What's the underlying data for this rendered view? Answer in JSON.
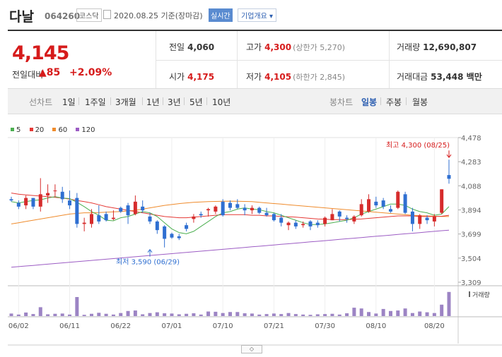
{
  "header": {
    "name": "다날",
    "code": "064260",
    "market": "코스닥",
    "date": "2020.08.25 기준(장마감)",
    "realtime": "실시간",
    "company_overview": "기업개요 ▾"
  },
  "summary": {
    "price": "4,145",
    "change_label": "전일대비",
    "change": "▲85",
    "change_pct": "+2.09%",
    "prev_close_label": "전일",
    "prev_close": "4,060",
    "high_label": "고가",
    "high": "4,300",
    "upper_limit": "(상한가 5,270)",
    "volume_label": "거래량",
    "volume": "12,690,807",
    "open_label": "시가",
    "open": "4,175",
    "low_label": "저가",
    "low": "4,105",
    "lower_limit": "(하한가 2,845)",
    "amount_label": "거래대금",
    "amount": "53,448 백만"
  },
  "tabs": {
    "line_label": "선차트",
    "line_periods": [
      "1일",
      "1주일",
      "3개월",
      "1년",
      "3년",
      "5년",
      "10년"
    ],
    "candle_label": "봉차트",
    "candle_periods": [
      "일봉",
      "주봉",
      "월봉"
    ],
    "active_candle": "일봉"
  },
  "legend": [
    {
      "name": "5",
      "color": "#4caf50"
    },
    {
      "name": "20",
      "color": "#e53935"
    },
    {
      "name": "60",
      "color": "#ef8b2c"
    },
    {
      "name": "120",
      "color": "#9c5cc4"
    }
  ],
  "chart_data": {
    "type": "candlestick",
    "ylim": [
      3309,
      4478
    ],
    "yticks": [
      "4,478",
      "4,283",
      "4,088",
      "3,894",
      "3,699",
      "3,504",
      "3,309"
    ],
    "xticks": [
      {
        "label": "06/02",
        "i": 1
      },
      {
        "label": "06/11",
        "i": 8
      },
      {
        "label": "06/22",
        "i": 15
      },
      {
        "label": "07/01",
        "i": 22
      },
      {
        "label": "07/10",
        "i": 29
      },
      {
        "label": "07/21",
        "i": 36
      },
      {
        "label": "07/30",
        "i": 43
      },
      {
        "label": "08/10",
        "i": 50
      },
      {
        "label": "08/20",
        "i": 58
      }
    ],
    "annotations": {
      "max": {
        "text": "최고 4,300 (08/25)",
        "i": 60,
        "value": 4300
      },
      "min": {
        "text": "최저 3,590 (06/29)",
        "i": 19,
        "value": 3590
      }
    },
    "volume_label": "거래량",
    "candles": [
      {
        "o": 3980,
        "h": 4000,
        "l": 3960,
        "c": 3970
      },
      {
        "o": 3950,
        "h": 3970,
        "l": 3900,
        "c": 3920
      },
      {
        "o": 3930,
        "h": 4010,
        "l": 3900,
        "c": 3990
      },
      {
        "o": 3990,
        "h": 3990,
        "l": 3900,
        "c": 3920
      },
      {
        "o": 3920,
        "h": 4150,
        "l": 3880,
        "c": 4020
      },
      {
        "o": 4010,
        "h": 4100,
        "l": 3950,
        "c": 4030
      },
      {
        "o": 4050,
        "h": 4100,
        "l": 4000,
        "c": 4050
      },
      {
        "o": 4040,
        "h": 4080,
        "l": 3950,
        "c": 3980
      },
      {
        "o": 3970,
        "h": 4050,
        "l": 3900,
        "c": 3930
      },
      {
        "o": 3990,
        "h": 4030,
        "l": 3750,
        "c": 3780
      },
      {
        "o": 3780,
        "h": 3830,
        "l": 3720,
        "c": 3790
      },
      {
        "o": 3780,
        "h": 3900,
        "l": 3750,
        "c": 3860
      },
      {
        "o": 3850,
        "h": 3930,
        "l": 3780,
        "c": 3800
      },
      {
        "o": 3860,
        "h": 3880,
        "l": 3800,
        "c": 3810
      },
      {
        "o": 3820,
        "h": 3890,
        "l": 3810,
        "c": 3830
      },
      {
        "o": 3910,
        "h": 3920,
        "l": 3870,
        "c": 3880
      },
      {
        "o": 3930,
        "h": 3950,
        "l": 3780,
        "c": 3850
      },
      {
        "o": 3860,
        "h": 4010,
        "l": 3850,
        "c": 3960
      },
      {
        "o": 3920,
        "h": 3970,
        "l": 3870,
        "c": 3890
      },
      {
        "o": 3840,
        "h": 3870,
        "l": 3780,
        "c": 3800
      },
      {
        "o": 3800,
        "h": 3810,
        "l": 3700,
        "c": 3730
      },
      {
        "o": 3760,
        "h": 3770,
        "l": 3590,
        "c": 3660
      },
      {
        "o": 3700,
        "h": 3710,
        "l": 3660,
        "c": 3670
      },
      {
        "o": 3680,
        "h": 3700,
        "l": 3650,
        "c": 3665
      },
      {
        "o": 3770,
        "h": 3790,
        "l": 3720,
        "c": 3740
      },
      {
        "o": 3820,
        "h": 3860,
        "l": 3790,
        "c": 3840
      },
      {
        "o": 3860,
        "h": 3880,
        "l": 3830,
        "c": 3850
      },
      {
        "o": 3890,
        "h": 3910,
        "l": 3840,
        "c": 3900
      },
      {
        "o": 3880,
        "h": 3930,
        "l": 3860,
        "c": 3920
      },
      {
        "o": 3960,
        "h": 3980,
        "l": 3840,
        "c": 3850
      },
      {
        "o": 3950,
        "h": 3970,
        "l": 3890,
        "c": 3910
      },
      {
        "o": 3940,
        "h": 3980,
        "l": 3900,
        "c": 3910
      },
      {
        "o": 3910,
        "h": 3940,
        "l": 3850,
        "c": 3890
      },
      {
        "o": 3890,
        "h": 3930,
        "l": 3860,
        "c": 3910
      },
      {
        "o": 3910,
        "h": 3920,
        "l": 3860,
        "c": 3870
      },
      {
        "o": 3870,
        "h": 3910,
        "l": 3840,
        "c": 3850
      },
      {
        "o": 3860,
        "h": 3870,
        "l": 3800,
        "c": 3810
      },
      {
        "o": 3830,
        "h": 3860,
        "l": 3760,
        "c": 3790
      },
      {
        "o": 3770,
        "h": 3800,
        "l": 3730,
        "c": 3790
      },
      {
        "o": 3790,
        "h": 3810,
        "l": 3740,
        "c": 3760
      },
      {
        "o": 3770,
        "h": 3800,
        "l": 3750,
        "c": 3780
      },
      {
        "o": 3800,
        "h": 3810,
        "l": 3730,
        "c": 3760
      },
      {
        "o": 3790,
        "h": 3810,
        "l": 3750,
        "c": 3770
      },
      {
        "o": 3780,
        "h": 3840,
        "l": 3760,
        "c": 3830
      },
      {
        "o": 3810,
        "h": 3900,
        "l": 3810,
        "c": 3860
      },
      {
        "o": 3880,
        "h": 3890,
        "l": 3800,
        "c": 3840
      },
      {
        "o": 3830,
        "h": 3850,
        "l": 3790,
        "c": 3820
      },
      {
        "o": 3800,
        "h": 3850,
        "l": 3780,
        "c": 3840
      },
      {
        "o": 3850,
        "h": 3980,
        "l": 3840,
        "c": 3940
      },
      {
        "o": 3880,
        "h": 4020,
        "l": 3870,
        "c": 3980
      },
      {
        "o": 3960,
        "h": 4000,
        "l": 3910,
        "c": 3930
      },
      {
        "o": 3970,
        "h": 3990,
        "l": 3900,
        "c": 3920
      },
      {
        "o": 3900,
        "h": 3930,
        "l": 3870,
        "c": 3880
      },
      {
        "o": 3910,
        "h": 4050,
        "l": 3900,
        "c": 4040
      },
      {
        "o": 4020,
        "h": 4040,
        "l": 3860,
        "c": 3870
      },
      {
        "o": 3880,
        "h": 3910,
        "l": 3720,
        "c": 3780
      },
      {
        "o": 3780,
        "h": 3860,
        "l": 3740,
        "c": 3850
      },
      {
        "o": 3830,
        "h": 3850,
        "l": 3780,
        "c": 3810
      },
      {
        "o": 3800,
        "h": 3860,
        "l": 3760,
        "c": 3840
      },
      {
        "o": 3870,
        "h": 4060,
        "l": 3860,
        "c": 4060
      },
      {
        "o": 4175,
        "h": 4300,
        "l": 4105,
        "c": 4145
      }
    ],
    "ma5": [
      3960,
      3950,
      3960,
      3970,
      3975,
      3990,
      4000,
      3990,
      3985,
      3955,
      3920,
      3880,
      3850,
      3810,
      3805,
      3830,
      3840,
      3860,
      3880,
      3870,
      3840,
      3790,
      3740,
      3710,
      3700,
      3720,
      3760,
      3800,
      3840,
      3870,
      3880,
      3900,
      3910,
      3900,
      3895,
      3880,
      3870,
      3850,
      3830,
      3810,
      3790,
      3775,
      3775,
      3780,
      3790,
      3800,
      3810,
      3830,
      3860,
      3880,
      3900,
      3920,
      3940,
      3940,
      3930,
      3900,
      3880,
      3870,
      3850,
      3860,
      3920
    ],
    "ma20": [
      4030,
      4020,
      4015,
      4010,
      4005,
      4000,
      3995,
      3990,
      3980,
      3970,
      3960,
      3950,
      3935,
      3920,
      3910,
      3900,
      3890,
      3880,
      3870,
      3860,
      3850,
      3840,
      3835,
      3830,
      3830,
      3835,
      3840,
      3845,
      3850,
      3855,
      3855,
      3855,
      3855,
      3850,
      3850,
      3845,
      3845,
      3840,
      3838,
      3835,
      3830,
      3825,
      3820,
      3818,
      3815,
      3815,
      3815,
      3818,
      3820,
      3825,
      3830,
      3835,
      3840,
      3845,
      3845,
      3845,
      3840,
      3840,
      3840,
      3842,
      3850
    ],
    "ma60": [
      3780,
      3790,
      3800,
      3810,
      3820,
      3830,
      3840,
      3850,
      3860,
      3865,
      3870,
      3870,
      3872,
      3875,
      3878,
      3880,
      3885,
      3890,
      3900,
      3910,
      3920,
      3930,
      3937,
      3944,
      3950,
      3955,
      3958,
      3960,
      3962,
      3963,
      3964,
      3963,
      3962,
      3960,
      3955,
      3950,
      3945,
      3940,
      3935,
      3930,
      3925,
      3920,
      3915,
      3910,
      3905,
      3900,
      3895,
      3890,
      3885,
      3880,
      3875,
      3870,
      3865,
      3860,
      3855,
      3850,
      3847,
      3845,
      3843,
      3840,
      3840
    ],
    "ma120": [
      3430,
      3435,
      3440,
      3445,
      3450,
      3455,
      3460,
      3465,
      3470,
      3475,
      3480,
      3485,
      3490,
      3495,
      3500,
      3505,
      3510,
      3515,
      3520,
      3525,
      3530,
      3535,
      3540,
      3545,
      3550,
      3555,
      3560,
      3565,
      3570,
      3575,
      3580,
      3585,
      3590,
      3595,
      3600,
      3605,
      3610,
      3615,
      3620,
      3625,
      3630,
      3635,
      3640,
      3645,
      3650,
      3655,
      3660,
      3665,
      3670,
      3675,
      3680,
      3685,
      3690,
      3695,
      3700,
      3705,
      3710,
      3715,
      3720,
      3725,
      3730
    ],
    "volume": [
      0.1,
      0.06,
      0.14,
      0.08,
      0.35,
      0.07,
      0.09,
      0.1,
      0.06,
      0.75,
      0.05,
      0.09,
      0.13,
      0.09,
      0.06,
      0.12,
      0.2,
      0.22,
      0.07,
      0.12,
      0.15,
      0.11,
      0.1,
      0.07,
      0.09,
      0.11,
      0.06,
      0.18,
      0.17,
      0.12,
      0.16,
      0.16,
      0.11,
      0.1,
      0.06,
      0.08,
      0.1,
      0.08,
      0.12,
      0.08,
      0.06,
      0.05,
      0.07,
      0.08,
      0.09,
      0.06,
      0.11,
      0.33,
      0.3,
      0.16,
      0.1,
      0.28,
      0.2,
      0.22,
      0.3,
      0.12,
      0.18,
      0.15,
      0.12,
      0.45,
      0.95
    ]
  },
  "scroll_button": "◇"
}
